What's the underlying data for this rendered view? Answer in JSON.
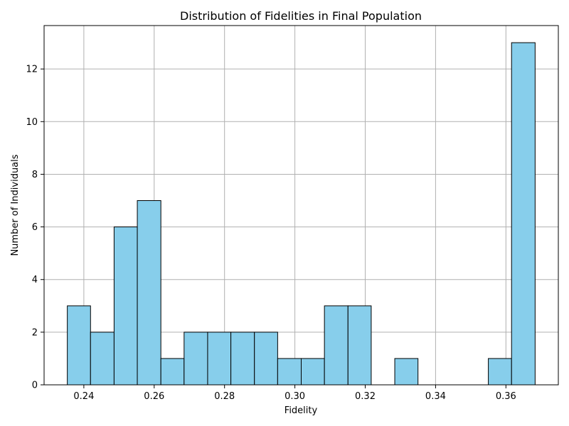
{
  "chart_data": {
    "type": "bar",
    "title": "Distribution of Fidelities in Final Population",
    "xlabel": "Fidelity",
    "ylabel": "Number of Individuals",
    "bins": [
      {
        "x0": 0.2353,
        "x1": 0.2419,
        "count": 3
      },
      {
        "x0": 0.2419,
        "x1": 0.2486,
        "count": 2
      },
      {
        "x0": 0.2486,
        "x1": 0.2552,
        "count": 6
      },
      {
        "x0": 0.2552,
        "x1": 0.2619,
        "count": 7
      },
      {
        "x0": 0.2619,
        "x1": 0.2685,
        "count": 1
      },
      {
        "x0": 0.2685,
        "x1": 0.2752,
        "count": 2
      },
      {
        "x0": 0.2752,
        "x1": 0.2818,
        "count": 2
      },
      {
        "x0": 0.2818,
        "x1": 0.2885,
        "count": 2
      },
      {
        "x0": 0.2885,
        "x1": 0.2951,
        "count": 2
      },
      {
        "x0": 0.2951,
        "x1": 0.3018,
        "count": 1
      },
      {
        "x0": 0.3018,
        "x1": 0.3084,
        "count": 1
      },
      {
        "x0": 0.3084,
        "x1": 0.3151,
        "count": 3
      },
      {
        "x0": 0.3151,
        "x1": 0.3217,
        "count": 3
      },
      {
        "x0": 0.3217,
        "x1": 0.3284,
        "count": 0
      },
      {
        "x0": 0.3284,
        "x1": 0.335,
        "count": 1
      },
      {
        "x0": 0.335,
        "x1": 0.3417,
        "count": 0
      },
      {
        "x0": 0.3417,
        "x1": 0.3483,
        "count": 0
      },
      {
        "x0": 0.3483,
        "x1": 0.355,
        "count": 0
      },
      {
        "x0": 0.355,
        "x1": 0.3616,
        "count": 1
      },
      {
        "x0": 0.3616,
        "x1": 0.3683,
        "count": 13
      }
    ],
    "xlim": [
      0.2287,
      0.3749
    ],
    "ylim": [
      0,
      13.65
    ],
    "xticks": [
      "0.24",
      "0.26",
      "0.28",
      "0.30",
      "0.32",
      "0.34",
      "0.36"
    ],
    "yticks": [
      "0",
      "2",
      "4",
      "6",
      "8",
      "10",
      "12"
    ],
    "grid": true,
    "bar_color": "#87ceeb",
    "edge_color": "#000000",
    "grid_color": "#b0b0b0"
  }
}
